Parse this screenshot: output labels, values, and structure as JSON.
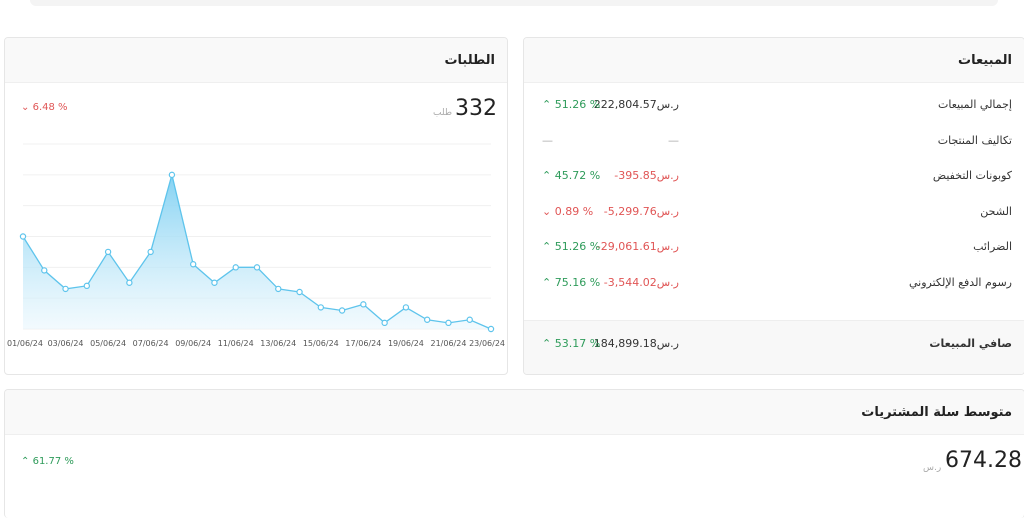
{
  "sales": {
    "title": "المبيعات",
    "rows": [
      {
        "label": "إجمالي المبيعات",
        "amount": "222,804.57",
        "currency": "ر.س",
        "pct": "51.26 %",
        "trend": "up"
      },
      {
        "label": "تكاليف المنتجات",
        "amount": "—",
        "currency": "",
        "pct": "—",
        "trend": "none"
      },
      {
        "label": "كوبونات التخفيض",
        "amount": "-395.85",
        "currency": "ر.س",
        "pct": "45.72 %",
        "trend": "up"
      },
      {
        "label": "الشحن",
        "amount": "-5,299.76",
        "currency": "ر.س",
        "pct": "0.89 %",
        "trend": "down"
      },
      {
        "label": "الضرائب",
        "amount": "-29,061.61",
        "currency": "ر.س",
        "pct": "51.26 %",
        "trend": "up"
      },
      {
        "label": "رسوم الدفع الإلكتروني",
        "amount": "-3,544.02",
        "currency": "ر.س",
        "pct": "75.16 %",
        "trend": "up"
      }
    ],
    "net": {
      "label": "صافي المبيعات",
      "amount": "184,899.18",
      "currency": "ر.س",
      "pct": "53.17 %",
      "trend": "up"
    }
  },
  "orders": {
    "title": "الطلبات",
    "total": "332",
    "unit": "طلب",
    "change": "6.48 %",
    "trend": "down"
  },
  "basket": {
    "title": "متوسط سلة المشتريات",
    "value": "674.28",
    "unit": "ر.س",
    "change": "61.77 %",
    "trend": "up"
  },
  "chart_data": {
    "type": "area",
    "x": [
      "01/06/24",
      "02/06/24",
      "03/06/24",
      "04/06/24",
      "05/06/24",
      "06/06/24",
      "07/06/24",
      "08/06/24",
      "09/06/24",
      "10/06/24",
      "11/06/24",
      "12/06/24",
      "13/06/24",
      "14/06/24",
      "15/06/24",
      "16/06/24",
      "17/06/24",
      "18/06/24",
      "19/06/24",
      "20/06/24",
      "21/06/24",
      "22/06/24",
      "23/06/24"
    ],
    "tick_labels": [
      "01/06/24",
      "03/06/24",
      "05/06/24",
      "07/06/24",
      "09/06/24",
      "11/06/24",
      "13/06/24",
      "15/06/24",
      "17/06/24",
      "19/06/24",
      "21/06/24",
      "23/06/24"
    ],
    "values": [
      30,
      19,
      13,
      14,
      25,
      15,
      25,
      50,
      21,
      15,
      20,
      20,
      13,
      12,
      7,
      6,
      8,
      2,
      7,
      3,
      2,
      3,
      0
    ],
    "ylim": [
      0,
      60
    ],
    "grid": true,
    "colors": {
      "line": "#5ec4ec",
      "fill_top": "#7fd0f2",
      "fill_bottom": "#eef8fd",
      "marker": "#5ec4ec"
    }
  }
}
